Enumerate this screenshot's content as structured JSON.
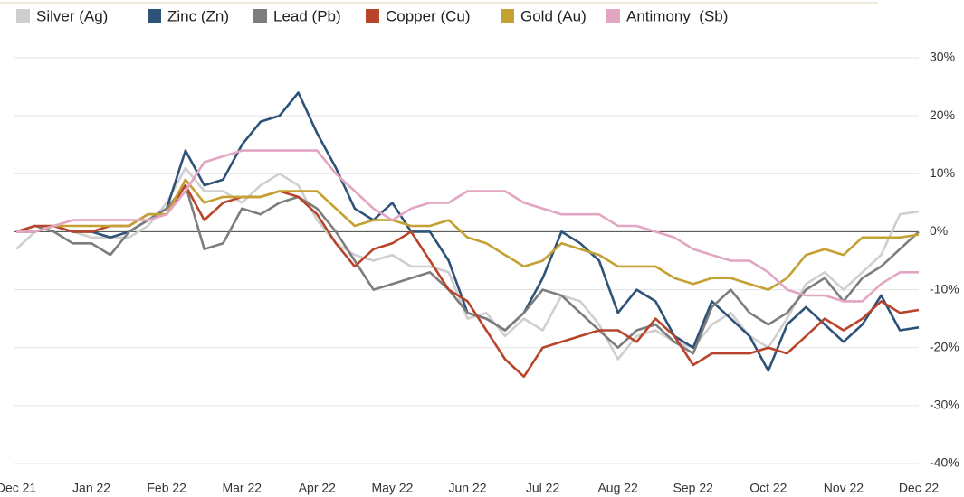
{
  "chart_data": {
    "type": "line",
    "x": [
      0,
      0.25,
      0.5,
      0.75,
      1,
      1.25,
      1.5,
      1.75,
      2,
      2.25,
      2.5,
      2.75,
      3,
      3.25,
      3.5,
      3.75,
      4,
      4.25,
      4.5,
      4.75,
      5,
      5.25,
      5.5,
      5.75,
      6,
      6.25,
      6.5,
      6.75,
      7,
      7.25,
      7.5,
      7.75,
      8,
      8.25,
      8.5,
      8.75,
      9,
      9.25,
      9.5,
      9.75,
      10,
      10.25,
      10.5,
      10.75,
      11,
      11.25,
      11.5,
      11.75,
      12
    ],
    "xlim": [
      0,
      12
    ],
    "xticks": [
      {
        "value": 0,
        "label": "Dec 21"
      },
      {
        "value": 1,
        "label": "Jan 22"
      },
      {
        "value": 2,
        "label": "Feb 22"
      },
      {
        "value": 3,
        "label": "Mar 22"
      },
      {
        "value": 4,
        "label": "Apr 22"
      },
      {
        "value": 5,
        "label": "May 22"
      },
      {
        "value": 6,
        "label": "Jun 22"
      },
      {
        "value": 7,
        "label": "Jul 22"
      },
      {
        "value": 8,
        "label": "Aug 22"
      },
      {
        "value": 9,
        "label": "Sep 22"
      },
      {
        "value": 10,
        "label": "Oct 22"
      },
      {
        "value": 11,
        "label": "Nov 22"
      },
      {
        "value": 12,
        "label": "Dec 22"
      }
    ],
    "ylim": [
      -40,
      30
    ],
    "yticks": [
      {
        "value": 30,
        "label": "30%"
      },
      {
        "value": 20,
        "label": "20%"
      },
      {
        "value": 10,
        "label": "10%"
      },
      {
        "value": 0,
        "label": "0%"
      },
      {
        "value": -10,
        "label": "-10%"
      },
      {
        "value": -20,
        "label": "-20%"
      },
      {
        "value": -30,
        "label": "-30%"
      },
      {
        "value": -40,
        "label": "-40%"
      }
    ],
    "grid": true,
    "series": [
      {
        "name": "Silver (Ag)",
        "color": "#cfcfcf",
        "values": [
          -3,
          0,
          1,
          0,
          -1,
          -1,
          -1,
          1,
          5,
          11,
          7,
          7,
          5,
          8,
          10,
          8,
          2,
          -2,
          -4,
          -5,
          -4,
          -6,
          -6,
          -7,
          -15,
          -14,
          -18,
          -15,
          -17,
          -11,
          -12,
          -16,
          -22,
          -18,
          -17,
          -19,
          -20,
          -16,
          -14,
          -18,
          -20,
          -15,
          -9,
          -7,
          -10,
          -7,
          -4,
          3,
          3.5
        ]
      },
      {
        "name": "Zinc (Zn)",
        "color": "#2f5378",
        "values": [
          0,
          0,
          1,
          0,
          0,
          -1,
          0,
          2,
          4,
          14,
          8,
          9,
          15,
          19,
          20,
          24,
          17,
          11,
          4,
          2,
          5,
          0,
          0,
          -5,
          -14,
          -15,
          -17,
          -14,
          -8,
          0,
          -2,
          -5,
          -14,
          -10,
          -12,
          -18,
          -20,
          -12,
          -15,
          -18,
          -24,
          -16,
          -13,
          -16,
          -19,
          -16,
          -11,
          -17,
          -16.5
        ]
      },
      {
        "name": "Lead (Pb)",
        "color": "#7d7d7d",
        "values": [
          0,
          1,
          0,
          -2,
          -2,
          -4,
          0,
          2,
          4,
          8,
          -3,
          -2,
          4,
          3,
          5,
          6,
          4,
          0,
          -5,
          -10,
          -9,
          -8,
          -7,
          -10,
          -14,
          -15,
          -17,
          -14,
          -10,
          -11,
          -14,
          -17,
          -20,
          -17,
          -16,
          -19,
          -21,
          -13,
          -10,
          -14,
          -16,
          -14,
          -10,
          -8,
          -12,
          -8,
          -6,
          -3,
          0
        ]
      },
      {
        "name": "Copper (Cu)",
        "color": "#b8452b",
        "values": [
          0,
          1,
          1,
          0,
          0,
          1,
          1,
          3,
          3,
          8,
          2,
          5,
          6,
          6,
          7,
          6,
          3,
          -2,
          -6,
          -3,
          -2,
          0,
          -5,
          -10,
          -12,
          -17,
          -22,
          -25,
          -20,
          -19,
          -18,
          -17,
          -17,
          -19,
          -15,
          -18,
          -23,
          -21,
          -21,
          -21,
          -20,
          -21,
          -18,
          -15,
          -17,
          -15,
          -12,
          -14,
          -13.5
        ]
      },
      {
        "name": "Gold (Au)",
        "color": "#c5a032",
        "values": [
          0,
          0,
          1,
          1,
          1,
          1,
          1,
          3,
          3,
          9,
          5,
          6,
          6,
          6,
          7,
          7,
          7,
          4,
          1,
          2,
          2,
          1,
          1,
          2,
          -1,
          -2,
          -4,
          -6,
          -5,
          -2,
          -3,
          -4,
          -6,
          -6,
          -6,
          -8,
          -9,
          -8,
          -8,
          -9,
          -10,
          -8,
          -4,
          -3,
          -4,
          -1,
          -1,
          -1,
          -0.5
        ]
      },
      {
        "name": "Antimony  (Sb)",
        "color": "#e2a6c3",
        "values": [
          0,
          0,
          1,
          2,
          2,
          2,
          2,
          2,
          3,
          7,
          12,
          13,
          14,
          14,
          14,
          14,
          14,
          10,
          7,
          4,
          2,
          4,
          5,
          5,
          7,
          7,
          7,
          5,
          4,
          3,
          3,
          3,
          1,
          1,
          0,
          -1,
          -3,
          -4,
          -5,
          -5,
          -7,
          -10,
          -11,
          -11,
          -12,
          -12,
          -9,
          -7,
          -7
        ]
      }
    ]
  }
}
